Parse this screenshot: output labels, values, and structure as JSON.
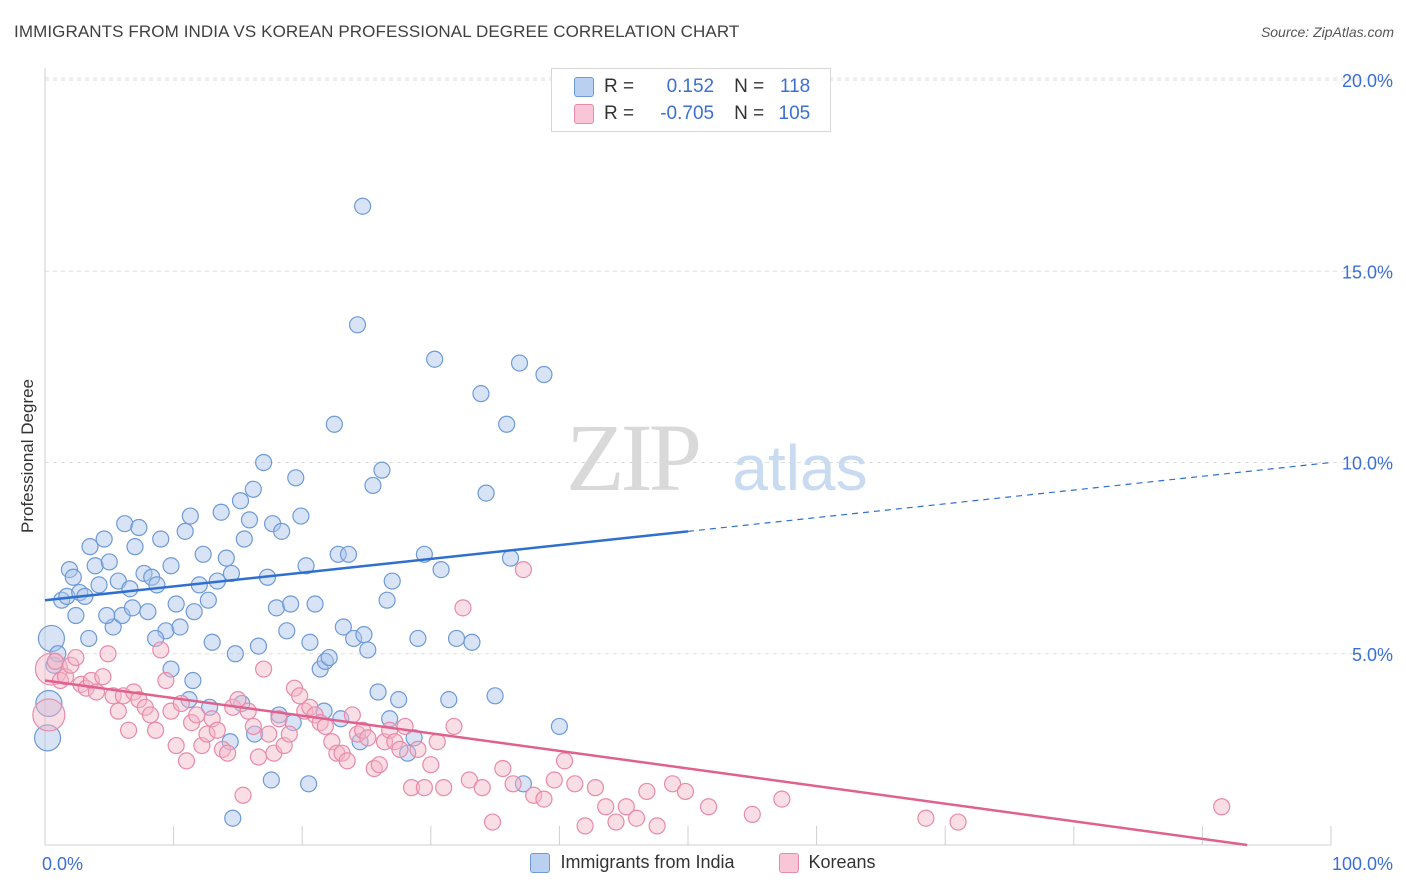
{
  "header": {
    "title": "IMMIGRANTS FROM INDIA VS KOREAN PROFESSIONAL DEGREE CORRELATION CHART",
    "source": "Source: ZipAtlas.com"
  },
  "legend": {
    "rows": [
      {
        "r_label": "R =",
        "r_value": "0.152",
        "n_label": "N =",
        "n_value": "118"
      },
      {
        "r_label": "R =",
        "r_value": "-0.705",
        "n_label": "N =",
        "n_value": "105"
      }
    ]
  },
  "bottom_legend": [
    "Immigrants from India",
    "Koreans"
  ],
  "watermark": {
    "zip": "ZIP",
    "atlas": "atlas"
  },
  "colors": {
    "india_fill": "#a8c4ec",
    "india_stroke": "#6d9ad8",
    "india_line": "#2f6fcf",
    "korean_fill": "#f5b5c8",
    "korean_stroke": "#e88aa8",
    "korean_line": "#e0608e",
    "axis_text": "#3b6fd4",
    "grid": "#dedede"
  },
  "chart_data": {
    "type": "scatter",
    "title": "IMMIGRANTS FROM INDIA VS KOREAN PROFESSIONAL DEGREE CORRELATION CHART",
    "xlabel": "",
    "ylabel": "Professional Degree",
    "xlim": [
      0,
      100
    ],
    "ylim": [
      0,
      20
    ],
    "x_tick_labels": [
      "0.0%",
      "100.0%"
    ],
    "y_ticks": [
      5,
      10,
      15,
      20
    ],
    "y_tick_labels": [
      "5.0%",
      "10.0%",
      "15.0%",
      "20.0%"
    ],
    "grid": true,
    "legend_position": "top-center",
    "series": [
      {
        "name": "Immigrants from India",
        "R": 0.152,
        "N": 118,
        "trend": {
          "x0": 0,
          "y0": 6.4,
          "x1": 50,
          "y1": 8.2,
          "dashed_to_x": 100,
          "dashed_to_y": 10.0
        },
        "points": [
          [
            0.5,
            5.4
          ],
          [
            0.3,
            3.7
          ],
          [
            0.2,
            2.8
          ],
          [
            0.7,
            4.7
          ],
          [
            1.3,
            6.4
          ],
          [
            1.7,
            6.5
          ],
          [
            1.9,
            7.2
          ],
          [
            2.2,
            7.0
          ],
          [
            2.7,
            6.6
          ],
          [
            3.1,
            6.5
          ],
          [
            3.5,
            7.8
          ],
          [
            3.9,
            7.3
          ],
          [
            4.2,
            6.8
          ],
          [
            4.6,
            8.0
          ],
          [
            5.0,
            7.4
          ],
          [
            5.3,
            5.7
          ],
          [
            5.7,
            6.9
          ],
          [
            6.0,
            6.0
          ],
          [
            6.2,
            8.4
          ],
          [
            6.6,
            6.7
          ],
          [
            7.0,
            7.8
          ],
          [
            7.3,
            8.3
          ],
          [
            7.7,
            7.1
          ],
          [
            8.0,
            6.1
          ],
          [
            8.3,
            7.0
          ],
          [
            8.7,
            6.8
          ],
          [
            9.0,
            8.0
          ],
          [
            9.4,
            5.6
          ],
          [
            9.8,
            7.3
          ],
          [
            10.2,
            6.3
          ],
          [
            10.5,
            5.7
          ],
          [
            10.9,
            8.2
          ],
          [
            11.3,
            8.6
          ],
          [
            11.6,
            6.1
          ],
          [
            12.0,
            6.8
          ],
          [
            12.3,
            7.6
          ],
          [
            12.7,
            6.4
          ],
          [
            13.0,
            5.3
          ],
          [
            13.4,
            6.9
          ],
          [
            13.7,
            8.7
          ],
          [
            14.1,
            7.5
          ],
          [
            14.5,
            7.1
          ],
          [
            14.8,
            5.0
          ],
          [
            15.2,
            9.0
          ],
          [
            15.5,
            8.0
          ],
          [
            15.9,
            8.5
          ],
          [
            16.2,
            9.3
          ],
          [
            16.6,
            5.2
          ],
          [
            17.0,
            10.0
          ],
          [
            17.3,
            7.0
          ],
          [
            17.7,
            8.4
          ],
          [
            18.0,
            6.2
          ],
          [
            18.4,
            8.2
          ],
          [
            18.8,
            5.6
          ],
          [
            19.1,
            6.3
          ],
          [
            19.5,
            9.6
          ],
          [
            19.9,
            8.6
          ],
          [
            20.3,
            7.3
          ],
          [
            20.6,
            5.3
          ],
          [
            21.0,
            6.3
          ],
          [
            21.4,
            4.6
          ],
          [
            21.8,
            4.8
          ],
          [
            22.1,
            4.9
          ],
          [
            22.5,
            11.0
          ],
          [
            22.8,
            7.6
          ],
          [
            23.2,
            5.7
          ],
          [
            23.6,
            7.6
          ],
          [
            24.0,
            5.4
          ],
          [
            24.3,
            13.6
          ],
          [
            24.8,
            5.5
          ],
          [
            25.1,
            5.1
          ],
          [
            25.5,
            9.4
          ],
          [
            25.9,
            4.0
          ],
          [
            26.2,
            9.8
          ],
          [
            26.6,
            6.4
          ],
          [
            27.0,
            6.9
          ],
          [
            27.5,
            3.8
          ],
          [
            28.2,
            2.4
          ],
          [
            29.0,
            5.4
          ],
          [
            29.5,
            7.6
          ],
          [
            30.3,
            12.7
          ],
          [
            30.8,
            7.2
          ],
          [
            31.4,
            3.8
          ],
          [
            32.0,
            5.4
          ],
          [
            33.2,
            5.3
          ],
          [
            33.9,
            11.8
          ],
          [
            34.3,
            9.2
          ],
          [
            35.0,
            3.9
          ],
          [
            35.9,
            11.0
          ],
          [
            36.2,
            7.5
          ],
          [
            36.9,
            12.6
          ],
          [
            37.2,
            1.6
          ],
          [
            38.8,
            12.3
          ],
          [
            40.0,
            3.1
          ],
          [
            11.5,
            4.3
          ],
          [
            12.8,
            3.6
          ],
          [
            15.3,
            3.7
          ],
          [
            18.2,
            3.4
          ],
          [
            19.3,
            3.2
          ],
          [
            20.5,
            1.6
          ],
          [
            1.0,
            5.0
          ],
          [
            2.4,
            6.0
          ],
          [
            3.4,
            5.4
          ],
          [
            4.8,
            6.0
          ],
          [
            6.8,
            6.2
          ],
          [
            8.6,
            5.4
          ],
          [
            9.8,
            4.6
          ],
          [
            11.2,
            3.8
          ],
          [
            14.4,
            2.7
          ],
          [
            16.3,
            2.9
          ],
          [
            17.6,
            1.7
          ],
          [
            21.7,
            3.5
          ],
          [
            23.0,
            3.3
          ],
          [
            24.5,
            2.7
          ],
          [
            26.8,
            3.3
          ],
          [
            28.7,
            2.8
          ],
          [
            24.7,
            16.7
          ],
          [
            14.6,
            0.7
          ]
        ]
      },
      {
        "name": "Koreans",
        "R": -0.705,
        "N": 105,
        "trend": {
          "x0": 0,
          "y0": 4.3,
          "x1": 100,
          "y1": -0.3
        },
        "points": [
          [
            0.3,
            3.4
          ],
          [
            0.5,
            4.6
          ],
          [
            0.8,
            4.8
          ],
          [
            1.2,
            4.3
          ],
          [
            1.6,
            4.4
          ],
          [
            2.0,
            4.7
          ],
          [
            2.4,
            4.9
          ],
          [
            2.8,
            4.2
          ],
          [
            3.2,
            4.1
          ],
          [
            3.6,
            4.3
          ],
          [
            4.0,
            4.0
          ],
          [
            4.5,
            4.4
          ],
          [
            4.9,
            5.0
          ],
          [
            5.3,
            3.9
          ],
          [
            5.7,
            3.5
          ],
          [
            6.1,
            3.9
          ],
          [
            6.5,
            3.0
          ],
          [
            6.9,
            4.0
          ],
          [
            7.3,
            3.8
          ],
          [
            7.8,
            3.6
          ],
          [
            8.2,
            3.4
          ],
          [
            8.6,
            3.0
          ],
          [
            9.0,
            5.1
          ],
          [
            9.4,
            4.3
          ],
          [
            9.8,
            3.5
          ],
          [
            10.2,
            2.6
          ],
          [
            10.6,
            3.7
          ],
          [
            11.0,
            2.2
          ],
          [
            11.4,
            3.2
          ],
          [
            11.8,
            3.4
          ],
          [
            12.2,
            2.6
          ],
          [
            12.6,
            2.9
          ],
          [
            13.0,
            3.3
          ],
          [
            13.4,
            3.0
          ],
          [
            13.8,
            2.5
          ],
          [
            14.2,
            2.4
          ],
          [
            14.6,
            3.6
          ],
          [
            15.0,
            3.8
          ],
          [
            15.4,
            1.3
          ],
          [
            15.8,
            3.5
          ],
          [
            16.2,
            3.1
          ],
          [
            16.6,
            2.3
          ],
          [
            17.0,
            4.6
          ],
          [
            17.4,
            2.9
          ],
          [
            17.8,
            2.4
          ],
          [
            18.2,
            3.3
          ],
          [
            18.6,
            2.6
          ],
          [
            19.0,
            2.9
          ],
          [
            19.4,
            4.1
          ],
          [
            19.8,
            3.9
          ],
          [
            20.2,
            3.5
          ],
          [
            20.6,
            3.6
          ],
          [
            21.0,
            3.4
          ],
          [
            21.4,
            3.2
          ],
          [
            21.8,
            3.1
          ],
          [
            22.3,
            2.7
          ],
          [
            22.7,
            2.4
          ],
          [
            23.1,
            2.4
          ],
          [
            23.5,
            2.2
          ],
          [
            23.9,
            3.4
          ],
          [
            24.3,
            2.9
          ],
          [
            24.7,
            3.0
          ],
          [
            25.1,
            2.8
          ],
          [
            25.6,
            2.0
          ],
          [
            26.0,
            2.1
          ],
          [
            26.4,
            2.7
          ],
          [
            26.8,
            3.0
          ],
          [
            27.2,
            2.7
          ],
          [
            27.6,
            2.5
          ],
          [
            28.0,
            3.1
          ],
          [
            28.5,
            1.5
          ],
          [
            29.0,
            2.5
          ],
          [
            29.5,
            1.5
          ],
          [
            30.0,
            2.1
          ],
          [
            30.5,
            2.7
          ],
          [
            31.0,
            1.5
          ],
          [
            31.8,
            3.1
          ],
          [
            32.5,
            6.2
          ],
          [
            33.0,
            1.7
          ],
          [
            34.0,
            1.5
          ],
          [
            34.8,
            0.6
          ],
          [
            35.6,
            2.0
          ],
          [
            36.4,
            1.6
          ],
          [
            37.2,
            7.2
          ],
          [
            38.0,
            1.3
          ],
          [
            38.8,
            1.2
          ],
          [
            39.6,
            1.7
          ],
          [
            40.4,
            2.2
          ],
          [
            41.2,
            1.6
          ],
          [
            42.0,
            0.5
          ],
          [
            42.8,
            1.5
          ],
          [
            43.6,
            1.0
          ],
          [
            44.4,
            0.6
          ],
          [
            45.2,
            1.0
          ],
          [
            46.0,
            0.7
          ],
          [
            46.8,
            1.4
          ],
          [
            47.6,
            0.5
          ],
          [
            48.8,
            1.6
          ],
          [
            49.8,
            1.4
          ],
          [
            51.6,
            1.0
          ],
          [
            55.0,
            0.8
          ],
          [
            57.3,
            1.2
          ],
          [
            68.5,
            0.7
          ],
          [
            71.0,
            0.6
          ],
          [
            91.5,
            1.0
          ]
        ]
      }
    ]
  }
}
